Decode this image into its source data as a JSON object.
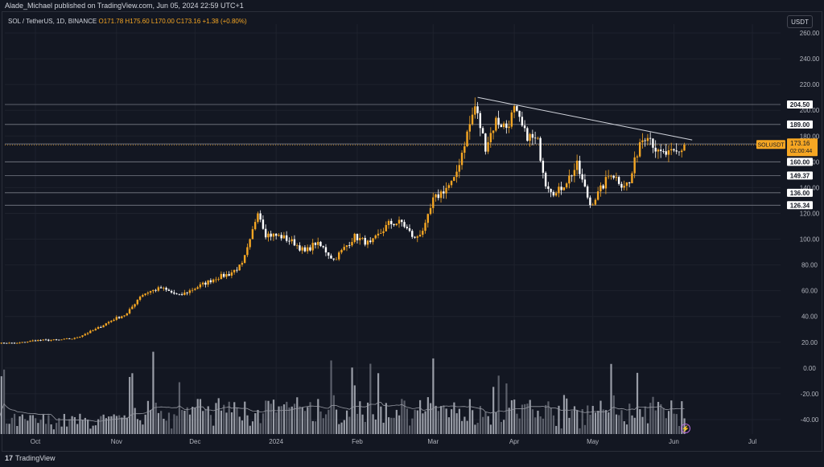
{
  "header": {
    "publisher_text": "Alade_Michael published on TradingView.com, Jun 05, 2024 22:59 UTC+1",
    "symbol_prefix": "SOL / TetherUS, 1D, BINANCE",
    "ohlc_text": "O171.78 H175.60 L170.00 C173.16 +1.38 (+0.80%)",
    "currency": "USDT"
  },
  "footer": {
    "brand": "TradingView",
    "logo_mark": "17"
  },
  "colors": {
    "background": "#131722",
    "up": "#f5a623",
    "down": "#ffffff",
    "axis_text": "#b2b5be",
    "grid": "#1e222d",
    "level_line": "#787b86"
  },
  "chart_data": {
    "type": "candlestick",
    "symbol": "SOL / TetherUS",
    "interval": "1D",
    "exchange": "BINANCE",
    "ylim": [
      -45,
      265
    ],
    "y_ticks": [
      260.0,
      240.0,
      220.0,
      200.0,
      180.0,
      160.0,
      140.0,
      120.0,
      100.0,
      80.0,
      60.0,
      40.0,
      20.0,
      0.0,
      -20.0,
      -40.0
    ],
    "x_ticks": [
      "Oct",
      "Nov",
      "Dec",
      "2024",
      "Feb",
      "Mar",
      "Apr",
      "May",
      "Jun",
      "Jul"
    ],
    "last_price": {
      "symbol_label": "SOLUSDT",
      "value": "173.16",
      "countdown": "02:00:44"
    },
    "horizontal_levels": [
      {
        "value": 204.5,
        "label": "204.50"
      },
      {
        "value": 189.0,
        "label": "189.00"
      },
      {
        "value": 173.9,
        "label": "173.90"
      },
      {
        "value": 160.0,
        "label": "160.00"
      },
      {
        "value": 149.37,
        "label": "149.37"
      },
      {
        "value": 136.0,
        "label": "136.00"
      },
      {
        "value": 126.34,
        "label": "126.34"
      }
    ],
    "trendline": {
      "from": {
        "date": "2024-03-18",
        "price": 210
      },
      "to": {
        "date": "2024-06-08",
        "price": 177
      }
    },
    "price_anchors": [
      [
        "2023-09-14",
        19.5
      ],
      [
        "2023-09-24",
        19.2
      ],
      [
        "2023-10-01",
        21.5
      ],
      [
        "2023-10-10",
        21.8
      ],
      [
        "2023-10-16",
        23
      ],
      [
        "2023-10-24",
        30
      ],
      [
        "2023-10-31",
        38
      ],
      [
        "2023-11-05",
        42
      ],
      [
        "2023-11-10",
        56
      ],
      [
        "2023-11-13",
        59
      ],
      [
        "2023-11-18",
        62
      ],
      [
        "2023-11-25",
        56
      ],
      [
        "2023-12-02",
        63
      ],
      [
        "2023-12-09",
        70
      ],
      [
        "2023-12-14",
        73
      ],
      [
        "2023-12-19",
        80
      ],
      [
        "2023-12-22",
        98
      ],
      [
        "2023-12-25",
        123
      ],
      [
        "2023-12-28",
        104
      ],
      [
        "2024-01-03",
        102
      ],
      [
        "2024-01-08",
        97
      ],
      [
        "2024-01-12",
        90
      ],
      [
        "2024-01-16",
        97
      ],
      [
        "2024-01-19",
        93
      ],
      [
        "2024-01-23",
        84
      ],
      [
        "2024-01-27",
        93
      ],
      [
        "2024-01-31",
        102
      ],
      [
        "2024-02-06",
        96
      ],
      [
        "2024-02-13",
        112
      ],
      [
        "2024-02-18",
        113
      ],
      [
        "2024-02-23",
        100
      ],
      [
        "2024-02-27",
        110
      ],
      [
        "2024-03-01",
        130
      ],
      [
        "2024-03-05",
        138
      ],
      [
        "2024-03-09",
        145
      ],
      [
        "2024-03-13",
        175
      ],
      [
        "2024-03-17",
        203
      ],
      [
        "2024-03-21",
        172
      ],
      [
        "2024-03-25",
        192
      ],
      [
        "2024-03-29",
        187
      ],
      [
        "2024-04-01",
        200
      ],
      [
        "2024-04-05",
        182
      ],
      [
        "2024-04-10",
        175
      ],
      [
        "2024-04-13",
        144
      ],
      [
        "2024-04-17",
        135
      ],
      [
        "2024-04-22",
        148
      ],
      [
        "2024-04-25",
        157
      ],
      [
        "2024-04-30",
        127
      ],
      [
        "2024-05-03",
        135
      ],
      [
        "2024-05-08",
        152
      ],
      [
        "2024-05-12",
        143
      ],
      [
        "2024-05-15",
        143
      ],
      [
        "2024-05-19",
        176
      ],
      [
        "2024-05-22",
        183
      ],
      [
        "2024-05-26",
        166
      ],
      [
        "2024-05-31",
        166
      ],
      [
        "2024-06-03",
        167
      ],
      [
        "2024-06-05",
        173
      ]
    ],
    "volume_axis": "volume bars share the lower price scale region; moving average line overlaid"
  }
}
